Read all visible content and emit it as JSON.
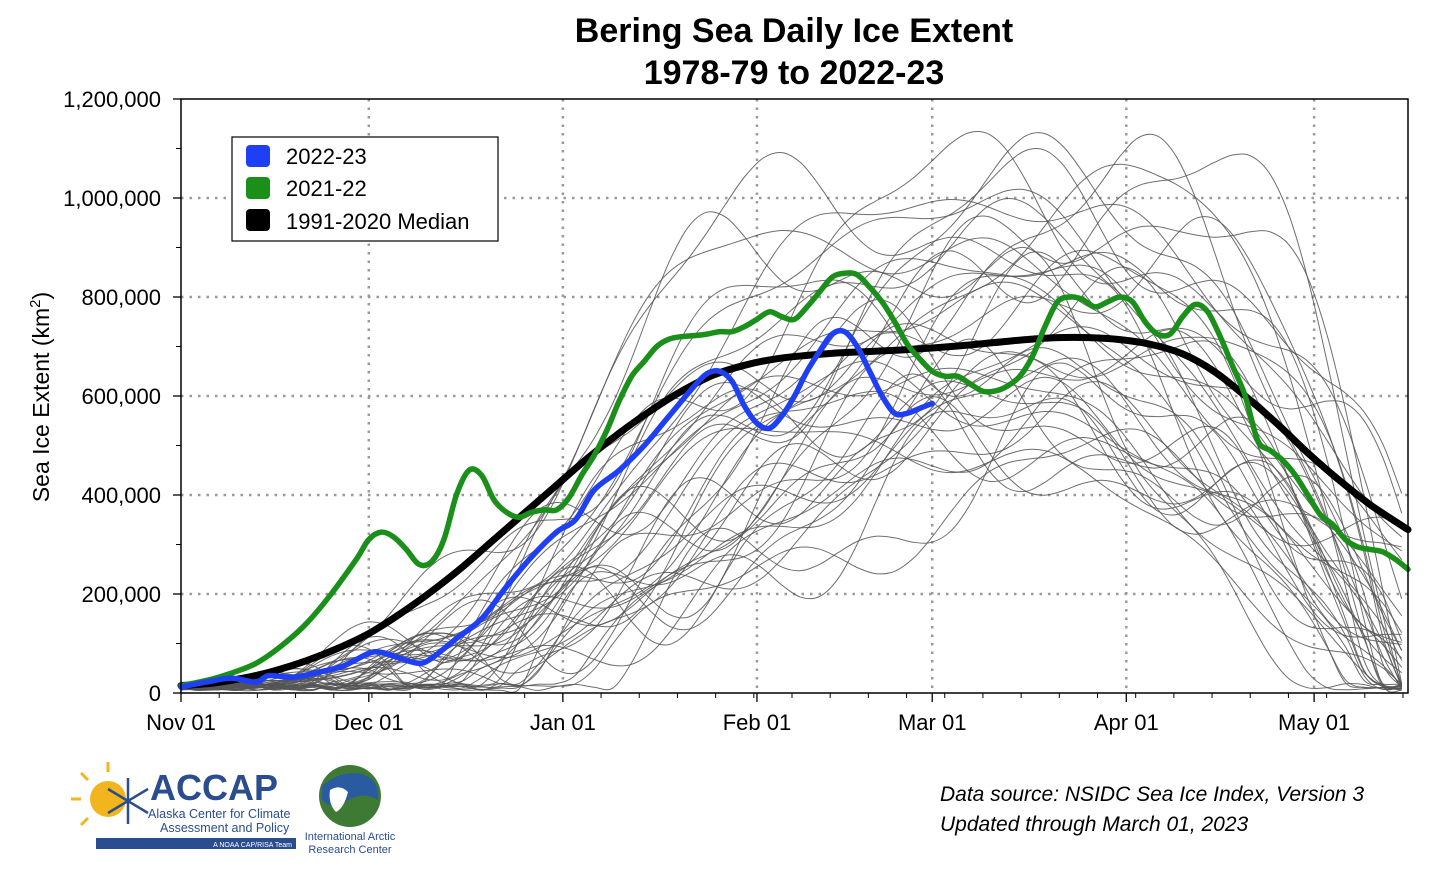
{
  "chart_data": {
    "type": "line",
    "title": [
      "Bering Sea Daily Ice Extent",
      "1978-79 to 2022-23"
    ],
    "ylabel": "Sea Ice Extent (km",
    "ylabel_sup": "2",
    "ylabel_close": ")",
    "xlabel": "",
    "x_unit": "days since Nov 01",
    "xlim": [
      0,
      196
    ],
    "ylim": [
      0,
      1200000
    ],
    "grid": true,
    "legend_position": "top-left",
    "x_ticks": [
      {
        "label": "Nov 01",
        "day": 0
      },
      {
        "label": "Dec 01",
        "day": 30
      },
      {
        "label": "Jan 01",
        "day": 61
      },
      {
        "label": "Feb 01",
        "day": 92
      },
      {
        "label": "Mar 01",
        "day": 120
      },
      {
        "label": "Apr 01",
        "day": 151
      },
      {
        "label": "May 01",
        "day": 181
      }
    ],
    "y_ticks": [
      {
        "label": "0",
        "value": 0
      },
      {
        "label": "200,000",
        "value": 200000
      },
      {
        "label": "400,000",
        "value": 400000
      },
      {
        "label": "600,000",
        "value": 600000
      },
      {
        "label": "800,000",
        "value": 800000
      },
      {
        "label": "1,000,000",
        "value": 1000000
      },
      {
        "label": "1,200,000",
        "value": 1200000
      }
    ],
    "series": [
      {
        "name": "2022-23",
        "color": "#1f3ff5",
        "x": [
          0,
          4,
          8,
          12,
          14,
          18,
          22,
          26,
          30,
          32,
          35,
          38,
          40,
          44,
          48,
          52,
          56,
          60,
          63,
          66,
          70,
          74,
          78,
          82,
          84,
          86,
          88,
          90,
          92,
          94,
          96,
          98,
          100,
          102,
          104,
          106,
          108,
          110,
          112,
          114,
          116,
          118,
          120
        ],
        "y": [
          12000,
          22000,
          30000,
          22000,
          35000,
          32000,
          42000,
          55000,
          80000,
          82000,
          70000,
          60000,
          70000,
          110000,
          150000,
          215000,
          275000,
          325000,
          350000,
          410000,
          450000,
          500000,
          560000,
          620000,
          645000,
          650000,
          630000,
          580000,
          545000,
          535000,
          560000,
          600000,
          650000,
          690000,
          725000,
          730000,
          700000,
          650000,
          600000,
          565000,
          565000,
          575000,
          585000
        ]
      },
      {
        "name": "2021-22",
        "color": "#1a8f1a",
        "x": [
          0,
          4,
          8,
          12,
          16,
          20,
          24,
          28,
          30,
          32,
          34,
          36,
          38,
          40,
          42,
          44,
          46,
          48,
          50,
          52,
          54,
          56,
          58,
          60,
          62,
          64,
          66,
          68,
          70,
          72,
          74,
          76,
          78,
          80,
          82,
          84,
          86,
          88,
          90,
          92,
          94,
          96,
          98,
          100,
          102,
          104,
          106,
          108,
          110,
          112,
          114,
          116,
          118,
          120,
          122,
          124,
          126,
          128,
          130,
          132,
          134,
          136,
          138,
          140,
          142,
          144,
          146,
          148,
          150,
          152,
          154,
          156,
          158,
          160,
          162,
          164,
          166,
          168,
          170,
          172,
          174,
          176,
          178,
          180,
          182,
          184,
          186,
          188,
          190,
          192,
          194,
          196
        ],
        "y": [
          15000,
          25000,
          40000,
          60000,
          95000,
          140000,
          200000,
          270000,
          310000,
          325000,
          315000,
          290000,
          260000,
          265000,
          310000,
          400000,
          450000,
          440000,
          390000,
          365000,
          355000,
          365000,
          370000,
          370000,
          395000,
          440000,
          480000,
          530000,
          590000,
          640000,
          670000,
          700000,
          715000,
          720000,
          722000,
          725000,
          730000,
          730000,
          740000,
          755000,
          770000,
          760000,
          755000,
          780000,
          810000,
          840000,
          848000,
          845000,
          820000,
          790000,
          750000,
          705000,
          675000,
          650000,
          640000,
          640000,
          625000,
          610000,
          610000,
          620000,
          640000,
          680000,
          740000,
          790000,
          800000,
          795000,
          780000,
          790000,
          800000,
          790000,
          750000,
          725000,
          725000,
          760000,
          785000,
          770000,
          720000,
          660000,
          600000,
          510000,
          490000,
          470000,
          440000,
          400000,
          360000,
          340000,
          310000,
          295000,
          290000,
          285000,
          270000,
          250000
        ]
      },
      {
        "name": "1991-2020 Median",
        "color": "#000000",
        "x": [
          0,
          5,
          10,
          15,
          20,
          25,
          30,
          35,
          40,
          45,
          50,
          55,
          60,
          65,
          70,
          75,
          80,
          85,
          90,
          95,
          100,
          105,
          110,
          115,
          120,
          125,
          130,
          135,
          140,
          145,
          150,
          155,
          160,
          165,
          170,
          175,
          180,
          185,
          190,
          196
        ],
        "y": [
          15000,
          20000,
          30000,
          45000,
          65000,
          90000,
          120000,
          160000,
          205000,
          255000,
          310000,
          365000,
          420000,
          475000,
          525000,
          570000,
          610000,
          642000,
          662000,
          675000,
          682000,
          687000,
          690000,
          693000,
          697000,
          702000,
          708000,
          714000,
          718000,
          718000,
          714000,
          704000,
          685000,
          650000,
          600000,
          545000,
          485000,
          430000,
          380000,
          330000
        ]
      }
    ],
    "background_series_note": "",
    "background_color": "#555555"
  },
  "legend": {
    "items": [
      {
        "label": "2022-23",
        "color": "#1f3ff5"
      },
      {
        "label": "2021-22",
        "color": "#1a8f1a"
      },
      {
        "label": "1991-2020 Median",
        "color": "#000000"
      }
    ]
  },
  "source": {
    "line1": "Data source: NSIDC Sea Ice Index, Version 3",
    "line2": "Updated through March 01, 2023"
  },
  "logos": {
    "accap_name": "ACCAP",
    "accap_line1": "Alaska Center for Climate",
    "accap_line2": "Assessment and Policy",
    "accap_tag": "A NOAA CAP/RISA Team",
    "iarc_line1": "International Arctic",
    "iarc_line2": "Research Center"
  }
}
